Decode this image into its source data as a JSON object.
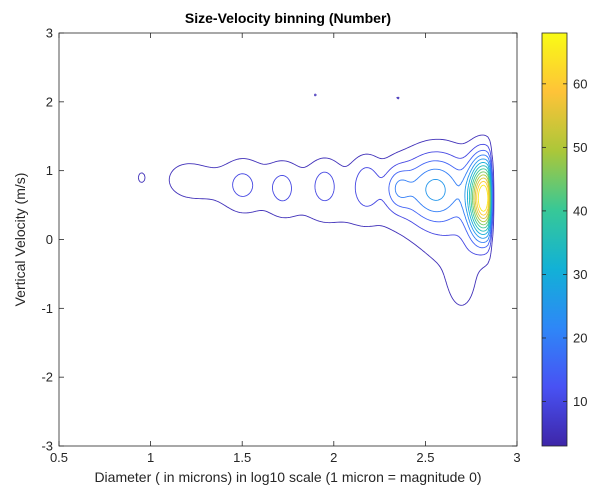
{
  "chart_data": {
    "type": "contour",
    "title": "Size-Velocity binning (Number)",
    "xlabel": "Diameter ( in microns) in log10 scale (1 micron = magnitude 0)",
    "ylabel": "Vertical Velocity (m/s)",
    "xlim": [
      0.5,
      3
    ],
    "ylim": [
      -3,
      3
    ],
    "xticks": [
      0.5,
      1,
      1.5,
      2,
      2.5,
      3
    ],
    "xtick_labels": [
      "0.5",
      "1",
      "1.5",
      "2",
      "2.5",
      "3"
    ],
    "yticks": [
      -3,
      -2,
      -1,
      0,
      1,
      2,
      3
    ],
    "ytick_labels": [
      "-3",
      "-2",
      "-1",
      "0",
      "1",
      "2",
      "3"
    ],
    "colorbar": {
      "range": [
        3,
        68
      ],
      "ticks": [
        10,
        20,
        30,
        40,
        50,
        60
      ],
      "tick_labels": [
        "10",
        "20",
        "30",
        "40",
        "50",
        "60"
      ],
      "colormap": "parula"
    },
    "grid": false,
    "levels": [
      5,
      10,
      15,
      20,
      25,
      30,
      35,
      40,
      45,
      50,
      55,
      60,
      65
    ],
    "components": [
      {
        "cx": 2.82,
        "cy": 0.6,
        "amp": 68,
        "sx": 0.055,
        "sy": 0.38
      },
      {
        "cx": 2.55,
        "cy": 0.75,
        "amp": 20,
        "sx": 0.12,
        "sy": 0.35
      },
      {
        "cx": 2.35,
        "cy": 0.75,
        "amp": 11,
        "sx": 0.05,
        "sy": 0.22
      },
      {
        "cx": 2.18,
        "cy": 0.8,
        "amp": 9,
        "sx": 0.05,
        "sy": 0.25
      },
      {
        "cx": 1.95,
        "cy": 0.8,
        "amp": 7,
        "sx": 0.05,
        "sy": 0.22
      },
      {
        "cx": 1.72,
        "cy": 0.75,
        "amp": 6,
        "sx": 0.05,
        "sy": 0.22
      },
      {
        "cx": 1.5,
        "cy": 0.8,
        "amp": 5,
        "sx": 0.06,
        "sy": 0.25
      },
      {
        "cx": 2.1,
        "cy": 0.6,
        "amp": 6,
        "sx": 0.4,
        "sy": 0.55
      },
      {
        "cx": 1.45,
        "cy": 0.8,
        "amp": 5,
        "sx": 0.25,
        "sy": 0.3
      },
      {
        "cx": 1.18,
        "cy": 0.9,
        "amp": 4,
        "sx": 0.1,
        "sy": 0.25
      },
      {
        "cx": 0.95,
        "cy": 0.9,
        "amp": 6,
        "sx": 0.02,
        "sy": 0.08
      },
      {
        "cx": 2.65,
        "cy": 0.2,
        "amp": 6,
        "sx": 0.15,
        "sy": 0.8
      },
      {
        "cx": 1.9,
        "cy": 2.1,
        "amp": 5.5,
        "sx": 0.015,
        "sy": 0.05
      },
      {
        "cx": 2.35,
        "cy": 2.05,
        "amp": 5.5,
        "sx": 0.02,
        "sy": 0.04
      },
      {
        "cx": 2.7,
        "cy": -0.6,
        "amp": 6,
        "sx": 0.05,
        "sy": 0.3
      }
    ]
  }
}
